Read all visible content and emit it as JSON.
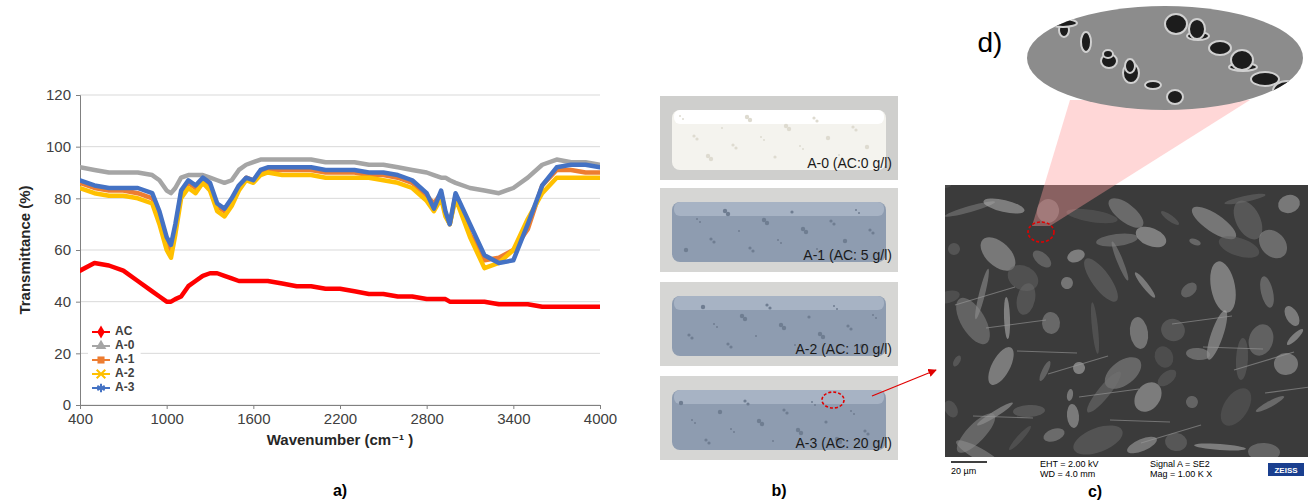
{
  "chart_data": {
    "type": "line",
    "x_label": "Wavenumber (cm⁻¹ )",
    "y_label": "Transmittance (%)",
    "xlim": [
      400,
      4000
    ],
    "xticks": [
      400,
      1000,
      1600,
      2200,
      2800,
      3400,
      4000
    ],
    "ylim": [
      0,
      120
    ],
    "yticks": [
      0,
      20,
      40,
      60,
      80,
      100,
      120
    ],
    "grid": true,
    "legend": "lower left",
    "x": [
      400,
      500,
      600,
      700,
      800,
      900,
      950,
      1000,
      1030,
      1060,
      1100,
      1150,
      1200,
      1250,
      1300,
      1350,
      1400,
      1450,
      1500,
      1550,
      1600,
      1650,
      1700,
      1800,
      1900,
      2000,
      2100,
      2200,
      2300,
      2400,
      2500,
      2600,
      2700,
      2800,
      2850,
      2900,
      2930,
      2960,
      3000,
      3100,
      3200,
      3300,
      3400,
      3500,
      3600,
      3700,
      3800,
      3900,
      4000
    ],
    "series": [
      {
        "name": "AC",
        "color": "#ff0000",
        "marker": "diamond",
        "values": [
          52,
          55,
          54,
          52,
          48,
          44,
          42,
          40,
          40,
          41,
          42,
          46,
          48,
          50,
          51,
          51,
          50,
          49,
          48,
          48,
          48,
          48,
          48,
          47,
          46,
          46,
          45,
          45,
          44,
          43,
          43,
          42,
          42,
          41,
          41,
          41,
          41,
          40,
          40,
          40,
          40,
          39,
          39,
          39,
          38,
          38,
          38,
          38,
          38
        ]
      },
      {
        "name": "A-0",
        "color": "#a5a5a5",
        "marker": "triangle",
        "values": [
          92,
          91,
          90,
          90,
          90,
          89,
          87,
          83,
          82,
          84,
          88,
          89,
          89,
          89,
          88,
          87,
          86,
          87,
          91,
          93,
          94,
          95,
          95,
          95,
          95,
          95,
          94,
          94,
          94,
          93,
          93,
          92,
          91,
          90,
          89,
          88,
          88,
          87,
          86,
          84,
          83,
          82,
          84,
          88,
          93,
          95,
          94,
          94,
          93
        ]
      },
      {
        "name": "A-1",
        "color": "#ed7d31",
        "marker": "square",
        "values": [
          86,
          84,
          83,
          83,
          82,
          80,
          73,
          63,
          60,
          68,
          82,
          86,
          84,
          87,
          85,
          77,
          75,
          79,
          84,
          88,
          87,
          90,
          91,
          91,
          91,
          91,
          90,
          90,
          90,
          89,
          89,
          88,
          86,
          81,
          78,
          82,
          74,
          70,
          81,
          66,
          56,
          57,
          60,
          68,
          85,
          91,
          91,
          90,
          90
        ]
      },
      {
        "name": "A-2",
        "color": "#ffc000",
        "marker": "x",
        "values": [
          84,
          82,
          81,
          81,
          80,
          78,
          70,
          60,
          57,
          66,
          80,
          84,
          82,
          86,
          83,
          75,
          73,
          77,
          83,
          87,
          86,
          89,
          90,
          89,
          89,
          89,
          88,
          88,
          88,
          88,
          87,
          86,
          84,
          79,
          75,
          80,
          73,
          70,
          80,
          65,
          53,
          55,
          60,
          72,
          82,
          88,
          88,
          88,
          88
        ]
      },
      {
        "name": "A-3",
        "color": "#4472c4",
        "marker": "asterisk",
        "values": [
          87,
          85,
          84,
          84,
          84,
          82,
          75,
          65,
          62,
          70,
          83,
          87,
          85,
          88,
          86,
          78,
          76,
          80,
          85,
          88,
          87,
          91,
          92,
          92,
          92,
          92,
          91,
          91,
          91,
          90,
          90,
          89,
          87,
          82,
          76,
          83,
          75,
          70,
          82,
          70,
          58,
          55,
          56,
          70,
          85,
          92,
          93,
          93,
          92
        ]
      }
    ]
  },
  "figure": {
    "panel_labels": [
      "a)",
      "b)",
      "c)",
      "d)"
    ],
    "photos": [
      "A-0 (AC:0 g/l)",
      "A-1 (AC: 5 g/l)",
      "A-2 (AC: 10 g/l)",
      "A-3 (AC: 20 g/l)"
    ],
    "sem_info": [
      "20 µm",
      "EHT = 2.00 kV",
      "WD = 4.0 mm",
      "Signal A = SE2",
      "Mag = 1.00 K X",
      "ZEISS"
    ]
  }
}
